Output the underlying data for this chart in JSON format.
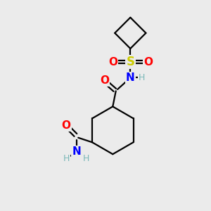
{
  "bg_color": "#ebebeb",
  "bond_color": "#000000",
  "line_width": 1.6,
  "atom_colors": {
    "O": "#ff0000",
    "N": "#0000ff",
    "S": "#cccc00",
    "H": "#7ab8b8",
    "C": "#000000"
  },
  "font_size_atoms": 11,
  "font_size_H": 9,
  "font_size_S": 12
}
